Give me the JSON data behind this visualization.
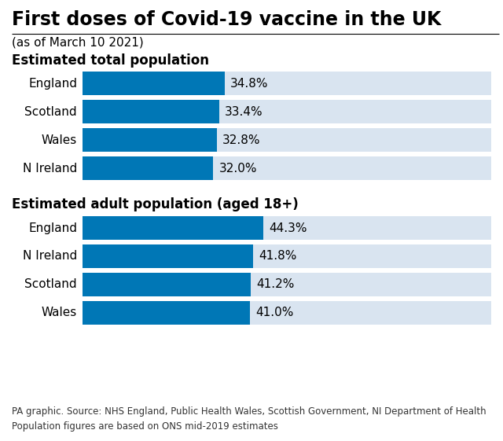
{
  "title": "First doses of Covid-19 vaccine in the UK",
  "subtitle": "(as of March 10 2021)",
  "section1_label": "Estimated total population",
  "section2_label": "Estimated adult population (aged 18+)",
  "section1_categories": [
    "England",
    "Scotland",
    "Wales",
    "N Ireland"
  ],
  "section1_values": [
    34.8,
    33.4,
    32.8,
    32.0
  ],
  "section2_categories": [
    "England",
    "N Ireland",
    "Scotland",
    "Wales"
  ],
  "section2_values": [
    44.3,
    41.8,
    41.2,
    41.0
  ],
  "bar_color": "#0077b6",
  "bg_bar_color": "#d9e4f0",
  "background_color": "#ffffff",
  "footer_text": "PA graphic. Source: NHS England, Public Health Wales, Scottish Government, NI Department of Health\nPopulation figures are based on ONS mid-2019 estimates",
  "title_fontsize": 17,
  "subtitle_fontsize": 11,
  "section_fontsize": 12,
  "label_fontsize": 11,
  "value_fontsize": 11,
  "footer_fontsize": 8.5
}
